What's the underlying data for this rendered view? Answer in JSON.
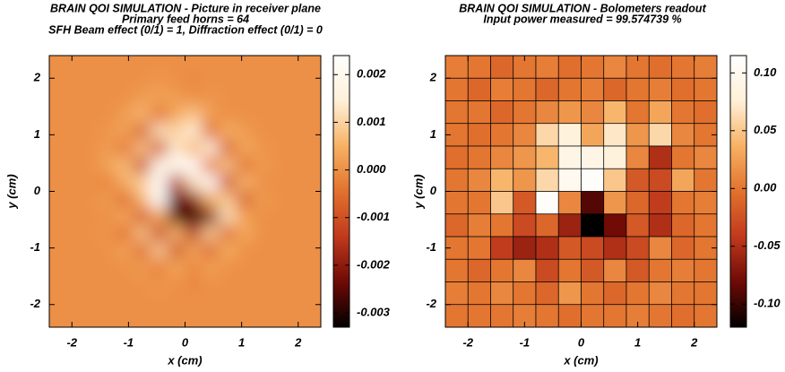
{
  "chart_data": [
    {
      "type": "heatmap",
      "title": [
        "BRAIN QOI SIMULATION - Picture in receiver plane",
        "Primary feed horns = 64",
        "SFH Beam effect (0/1) = 1, Diffraction effect (0/1) = 0"
      ],
      "xlabel": "x (cm)",
      "ylabel": "y (cm)",
      "xlim": [
        -2.4,
        2.4
      ],
      "ylim": [
        -2.4,
        2.4
      ],
      "xticks": [
        -2,
        -1,
        0,
        1,
        2
      ],
      "yticks": [
        -2,
        -1,
        0,
        1,
        2
      ],
      "zlim": [
        -0.0033,
        0.0024
      ],
      "zticks": [
        0.002,
        0.001,
        {
          "value": 0,
          "label": "0.000"
        },
        -0.001,
        -0.002,
        -0.003
      ],
      "interpolation": "smooth",
      "colormap": [
        "#000000",
        "#6e0a06",
        "#c0391c",
        "#e2722e",
        "#f7b163",
        "#fff0d8",
        "#ffffff"
      ],
      "values": [
        [
          0,
          0,
          0,
          0,
          0,
          0,
          0,
          0,
          0,
          0,
          0,
          0,
          0,
          0,
          0,
          0
        ],
        [
          0,
          0,
          0,
          0,
          0,
          0,
          0.0001,
          0,
          -0.0001,
          0,
          0,
          0,
          0,
          0,
          0,
          0
        ],
        [
          0,
          0,
          0,
          0,
          0,
          0.0002,
          0.0003,
          0.0002,
          0,
          0.0001,
          0,
          0,
          0,
          0,
          0,
          0
        ],
        [
          0,
          0,
          0,
          0,
          0.0002,
          0.0006,
          -0.0005,
          0.0004,
          0.0008,
          0.0002,
          0,
          0,
          0,
          0,
          0,
          0
        ],
        [
          0,
          0,
          0,
          0.0001,
          0.0003,
          -0.0008,
          0.0012,
          0.001,
          0.0015,
          -0.0006,
          0.0005,
          0.0002,
          0,
          0,
          0,
          0
        ],
        [
          0,
          0,
          0,
          0.0002,
          -0.0004,
          0.0008,
          -0.001,
          0.0014,
          0.0005,
          0.0016,
          -0.0008,
          0.0004,
          0.0001,
          0,
          0,
          0
        ],
        [
          0,
          0,
          0,
          0.0003,
          0.0007,
          -0.0012,
          0.0018,
          0.002,
          0.0024,
          -0.0004,
          0.0008,
          -0.0005,
          0.0002,
          0,
          0,
          0
        ],
        [
          0,
          0,
          0,
          -0.0002,
          0.0005,
          0.001,
          0.0022,
          -0.0015,
          0.0012,
          0.0023,
          -0.0012,
          0.0006,
          0,
          0,
          0,
          0
        ],
        [
          0,
          0,
          0,
          0.0002,
          -0.0006,
          0.0006,
          0.0024,
          -0.0025,
          -0.002,
          0.0005,
          0.0009,
          -0.0008,
          0.0002,
          0,
          0,
          0
        ],
        [
          0,
          0,
          0,
          0,
          0.0004,
          -0.0009,
          0.0004,
          -0.0026,
          -0.0033,
          -0.0022,
          0.0012,
          0.0003,
          0,
          0,
          0,
          0
        ],
        [
          0,
          0,
          0,
          0.0001,
          -0.0005,
          0.0008,
          -0.0012,
          0.0006,
          -0.0015,
          0.0009,
          -0.0006,
          0.0004,
          0,
          0,
          0,
          0
        ],
        [
          0,
          0,
          0,
          0,
          0.0003,
          -0.0006,
          0.0009,
          -0.001,
          0.0004,
          -0.0007,
          0.0005,
          0,
          0,
          0,
          0,
          0
        ],
        [
          0,
          0,
          0,
          0,
          0,
          0.0002,
          -0.0003,
          0.0004,
          -0.0002,
          0.0003,
          0,
          0,
          0,
          0,
          0,
          0
        ],
        [
          0,
          0,
          0,
          0,
          0,
          0,
          0.0001,
          0,
          -0.0001,
          0,
          0,
          0,
          0,
          0,
          0,
          0
        ],
        [
          0,
          0,
          0,
          0,
          0,
          0,
          0,
          0,
          0,
          0,
          0,
          0,
          0,
          0,
          0,
          0
        ],
        [
          0,
          0,
          0,
          0,
          0,
          0,
          0,
          0,
          0,
          0,
          0,
          0,
          0,
          0,
          0,
          0
        ]
      ]
    },
    {
      "type": "heatmap",
      "title": [
        "BRAIN QOI SIMULATION - Bolometers readout",
        "Input power measured = 99.574739 %"
      ],
      "xlabel": "x (cm)",
      "ylabel": "y (cm)",
      "xlim": [
        -2.4,
        2.4
      ],
      "ylim": [
        -2.4,
        2.4
      ],
      "xticks": [
        -2,
        -1,
        0,
        1,
        2
      ],
      "yticks": [
        -2,
        -1,
        0,
        1,
        2
      ],
      "zlim": [
        -0.12,
        0.115
      ],
      "zticks": [
        {
          "value": 0.1,
          "label": "0.10"
        },
        0.05,
        {
          "value": 0,
          "label": "0.00"
        },
        -0.05,
        {
          "value": -0.1,
          "label": "-0.10"
        }
      ],
      "interpolation": "nearest",
      "colormap": [
        "#000000",
        "#6e0a06",
        "#c0391c",
        "#e2722e",
        "#f7b163",
        "#fff0d8",
        "#ffffff"
      ],
      "values": [
        [
          0.005,
          0,
          -0.01,
          0,
          0.005,
          -0.005,
          0,
          0.01,
          0,
          -0.005,
          0,
          0.005
        ],
        [
          0,
          -0.01,
          0.005,
          0,
          -0.01,
          0,
          0.005,
          -0.01,
          0,
          0.005,
          -0.005,
          0
        ],
        [
          0,
          0,
          -0.01,
          0,
          0.01,
          0.02,
          0.01,
          0.04,
          0,
          0.03,
          0,
          -0.005
        ],
        [
          0,
          -0.005,
          0,
          0.01,
          0.06,
          0.08,
          0.03,
          0.07,
          0.02,
          0.06,
          0.01,
          0
        ],
        [
          -0.005,
          0,
          0.01,
          0.02,
          0.04,
          0.09,
          0.09,
          0.08,
          0.01,
          -0.05,
          0,
          0.01
        ],
        [
          0,
          0.01,
          0.04,
          0.02,
          0.06,
          0.1,
          0.11,
          0.05,
          -0.02,
          -0.03,
          0.03,
          0
        ],
        [
          0,
          0,
          0.05,
          -0.02,
          0.11,
          0.01,
          -0.09,
          0.02,
          -0.01,
          -0.04,
          0,
          0.005
        ],
        [
          -0.01,
          0.005,
          0,
          -0.03,
          -0.01,
          -0.06,
          -0.12,
          -0.08,
          -0.02,
          -0.05,
          -0.01,
          0
        ],
        [
          0,
          0,
          -0.04,
          -0.06,
          -0.05,
          -0.02,
          -0.03,
          -0.05,
          -0.03,
          0.01,
          -0.01,
          0
        ],
        [
          0,
          -0.01,
          0,
          0.01,
          -0.03,
          0,
          -0.02,
          0.01,
          -0.02,
          0,
          0.005,
          0
        ],
        [
          0.005,
          0,
          0.01,
          0,
          -0.01,
          0.02,
          0,
          -0.01,
          0,
          0.01,
          0,
          0
        ],
        [
          0,
          0,
          0,
          0.005,
          0,
          -0.005,
          0,
          0,
          0.005,
          0,
          -0.005,
          0
        ]
      ]
    }
  ]
}
